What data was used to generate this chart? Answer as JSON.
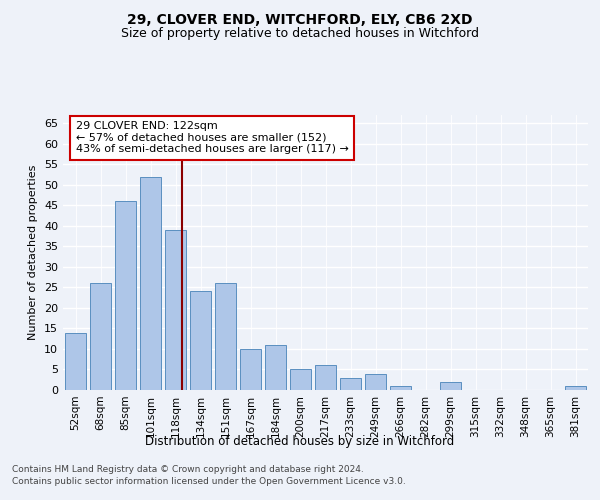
{
  "title1": "29, CLOVER END, WITCHFORD, ELY, CB6 2XD",
  "title2": "Size of property relative to detached houses in Witchford",
  "xlabel": "Distribution of detached houses by size in Witchford",
  "ylabel": "Number of detached properties",
  "categories": [
    "52sqm",
    "68sqm",
    "85sqm",
    "101sqm",
    "118sqm",
    "134sqm",
    "151sqm",
    "167sqm",
    "184sqm",
    "200sqm",
    "217sqm",
    "233sqm",
    "249sqm",
    "266sqm",
    "282sqm",
    "299sqm",
    "315sqm",
    "332sqm",
    "348sqm",
    "365sqm",
    "381sqm"
  ],
  "values": [
    14,
    26,
    46,
    52,
    39,
    24,
    26,
    10,
    11,
    5,
    6,
    3,
    4,
    1,
    0,
    2,
    0,
    0,
    0,
    0,
    1
  ],
  "bar_color": "#aec6e8",
  "bar_edge_color": "#5a8fc0",
  "vline_color": "#8b0000",
  "annotation_text": "29 CLOVER END: 122sqm\n← 57% of detached houses are smaller (152)\n43% of semi-detached houses are larger (117) →",
  "annotation_box_color": "#ffffff",
  "annotation_border_color": "#cc0000",
  "ylim": [
    0,
    67
  ],
  "yticks": [
    0,
    5,
    10,
    15,
    20,
    25,
    30,
    35,
    40,
    45,
    50,
    55,
    60,
    65
  ],
  "footer1": "Contains HM Land Registry data © Crown copyright and database right 2024.",
  "footer2": "Contains public sector information licensed under the Open Government Licence v3.0.",
  "bg_color": "#eef2f9",
  "plot_bg_color": "#eef2f9"
}
